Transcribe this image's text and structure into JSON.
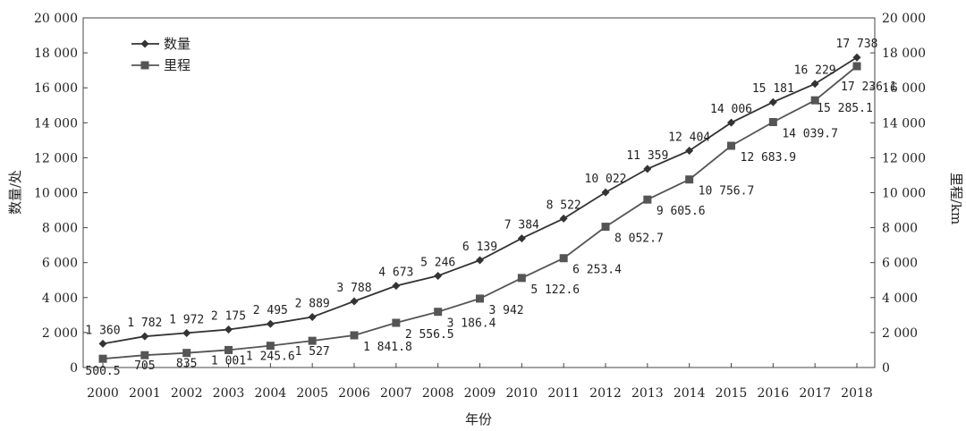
{
  "chart_data": {
    "type": "line",
    "title": "",
    "xlabel": "年份",
    "ylabel": "数量/处",
    "y2label": "里程/km",
    "ylim": [
      0,
      20000
    ],
    "y2lim": [
      0,
      20000
    ],
    "yticks": [
      "0",
      "2 000",
      "4 000",
      "6 000",
      "8 000",
      "10 000",
      "12 000",
      "14 000",
      "16 000",
      "18 000",
      "20 000"
    ],
    "grid": false,
    "legend_position": "top-left",
    "categories": [
      "2000",
      "2001",
      "2002",
      "2003",
      "2004",
      "2005",
      "2006",
      "2007",
      "2008",
      "2009",
      "2010",
      "2011",
      "2012",
      "2013",
      "2014",
      "2015",
      "2016",
      "2017",
      "2018"
    ],
    "series": [
      {
        "name": "数量",
        "marker": "diamond",
        "color": "#333333",
        "values": [
          1360,
          1782,
          1972,
          2175,
          2495,
          2889,
          3788,
          4673,
          5246,
          6139,
          7384,
          8522,
          10022,
          11359,
          12404,
          14006,
          15181,
          16229,
          17738
        ],
        "labels": [
          "1 360",
          "1 782",
          "1 972",
          "2 175",
          "2 495",
          "2 889",
          "3 788",
          "4 673",
          "5 246",
          "6 139",
          "7 384",
          "8 522",
          "10 022",
          "11 359",
          "12 404",
          "14 006",
          "15 181",
          "16 229",
          "17 738"
        ]
      },
      {
        "name": "里程",
        "marker": "square",
        "color": "#555555",
        "values": [
          500.5,
          705,
          835,
          1001,
          1245.6,
          1527,
          1841.8,
          2556.5,
          3186.4,
          3942,
          5122.6,
          6253.4,
          8052.7,
          9605.6,
          10756.7,
          12683.9,
          14039.7,
          15285.1,
          17236.1
        ],
        "labels": [
          "500.5",
          "705",
          "835",
          "1 001",
          "1 245.6",
          "1 527",
          "1 841.8",
          "2 556.5",
          "3 186.4",
          "3 942",
          "5 122.6",
          "6 253.4",
          "8 052.7",
          "9 605.6",
          "10 756.7",
          "12 683.9",
          "14 039.7",
          "15 285.1",
          "17 236.1"
        ]
      }
    ]
  }
}
